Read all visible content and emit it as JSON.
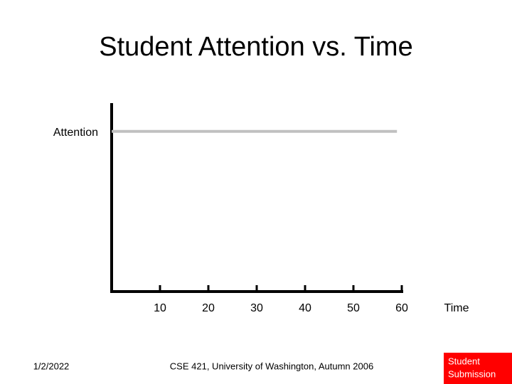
{
  "chart_data": {
    "type": "line",
    "title": "Student Attention vs. Time",
    "y_label": "Attention",
    "x_label": "Time",
    "x": [
      0,
      59
    ],
    "series": [
      {
        "name": "Attention",
        "color": "#c0c0c0",
        "values": [
          0.85,
          0.85
        ]
      }
    ],
    "xlim": [
      0,
      60
    ],
    "xticks": [
      10,
      20,
      30,
      40,
      50,
      60
    ],
    "ylim": [
      0,
      1
    ],
    "axis_color": "#000000"
  },
  "footer": {
    "date": "1/2/2022",
    "course": "CSE 421, University of Washington, Autumn 2006",
    "badge": [
      "Student",
      "Submission"
    ],
    "badge_color": "#ff0000"
  }
}
